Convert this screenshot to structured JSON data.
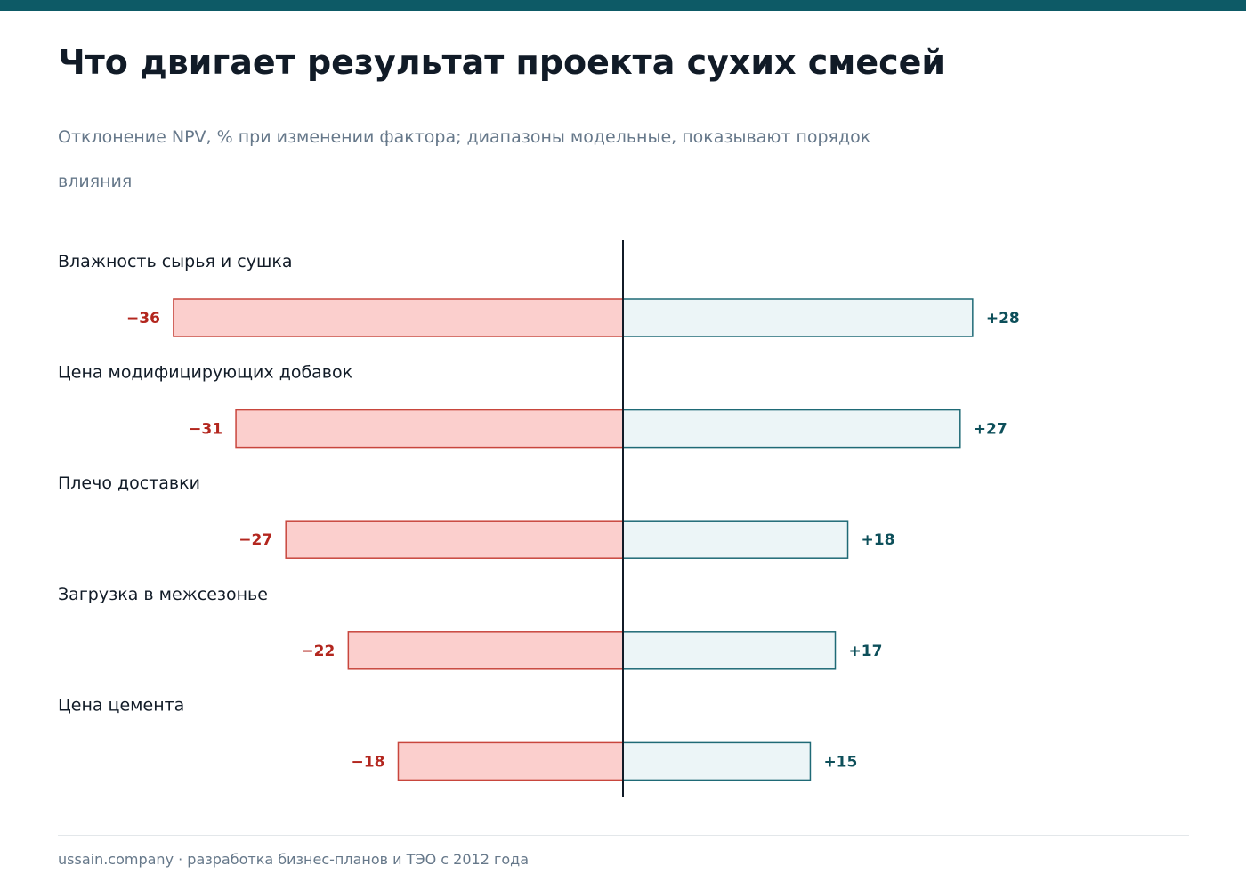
{
  "header": {
    "title": "Что двигает результат проекта сухих смесей",
    "subtitle": "Отклонение NPV, % при изменении фактора; диапазоны модельные, показывают порядок влияния"
  },
  "colors": {
    "brand": "#0d5a66",
    "negative_fill": "#fbcfcd",
    "negative_stroke": "#c8463d",
    "negative_text": "#b3261e",
    "positive_fill": "#ecf5f7",
    "positive_stroke": "#1f6a76",
    "positive_text": "#0d4f5a",
    "label_text": "#111b27",
    "axis": "#111b27"
  },
  "chart_data": {
    "type": "bar",
    "orientation": "horizontal",
    "variant": "tornado",
    "title": "",
    "xlabel": "",
    "ylabel": "",
    "xlim": [
      -45,
      45
    ],
    "grid": false,
    "categories": [
      "Влажность сырья и сушка",
      "Цена модифицирующих добавок",
      "Плечо доставки",
      "Загрузка в межсезонье",
      "Цена цемента"
    ],
    "series": [
      {
        "key": "downside",
        "values": [
          -36,
          -31,
          -27,
          -22,
          -18
        ]
      },
      {
        "key": "upside",
        "values": [
          28,
          27,
          18,
          17,
          15
        ]
      }
    ],
    "data_labels": {
      "downside": [
        "−36",
        "−31",
        "−27",
        "−22",
        "−18"
      ],
      "upside": [
        "+28",
        "+27",
        "+18",
        "+17",
        "+15"
      ]
    }
  },
  "footer": {
    "text": "ussain.company · разработка бизнес-планов и ТЭО с 2012 года"
  }
}
